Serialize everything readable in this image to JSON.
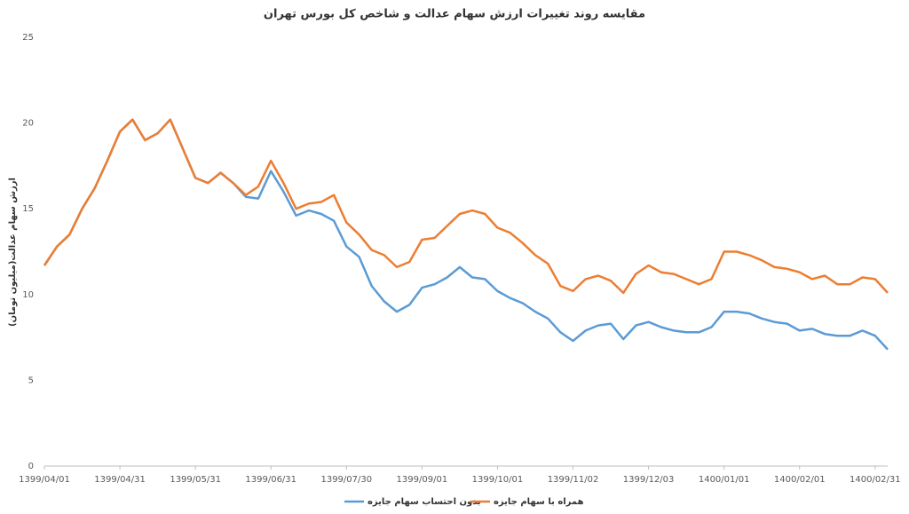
{
  "chart_data": {
    "type": "line",
    "title": "مقایسه روند تغییرات ارزش سهام عدالت و شاخص کل بورس تهران",
    "y_label": "ارزش سهام عدالت(میلیون تومان)",
    "categories": [
      "1399/04/01",
      null,
      null,
      null,
      null,
      null,
      "1399/04/31",
      null,
      null,
      null,
      null,
      null,
      "1399/05/31",
      null,
      null,
      null,
      null,
      null,
      "1399/06/31",
      null,
      null,
      null,
      null,
      null,
      "1399/07/30",
      null,
      null,
      null,
      null,
      null,
      "1399/09/01",
      null,
      null,
      null,
      null,
      null,
      "1399/10/01",
      null,
      null,
      null,
      null,
      null,
      "1399/11/02",
      null,
      null,
      null,
      null,
      null,
      "1399/12/03",
      null,
      null,
      null,
      null,
      null,
      "1400/01/01",
      null,
      null,
      null,
      null,
      null,
      "1400/02/01",
      null,
      null,
      null,
      null,
      null,
      "1400/02/31",
      null
    ],
    "series": [
      {
        "name": "بدون احتساب سهام جایزه",
        "color": "#5b9bd5",
        "values": [
          11.7,
          12.8,
          13.5,
          15.0,
          16.2,
          17.8,
          19.5,
          20.2,
          19.0,
          19.4,
          20.2,
          18.5,
          16.8,
          16.5,
          17.1,
          16.5,
          15.7,
          15.6,
          17.2,
          16.0,
          14.6,
          14.9,
          14.7,
          14.3,
          12.8,
          12.2,
          10.5,
          9.6,
          9.0,
          9.4,
          10.4,
          10.6,
          11.0,
          11.6,
          11.0,
          10.9,
          10.2,
          9.8,
          9.5,
          9.0,
          8.6,
          7.8,
          7.3,
          7.9,
          8.2,
          8.3,
          7.4,
          8.2,
          8.4,
          8.1,
          7.9,
          7.8,
          7.8,
          8.1,
          9.0,
          9.0,
          8.9,
          8.6,
          8.4,
          8.3,
          7.9,
          8.0,
          7.7,
          7.6,
          7.6,
          7.9,
          7.6,
          6.8
        ]
      },
      {
        "name": "همراه با سهام جایزه",
        "color": "#ed7d31",
        "values": [
          11.7,
          12.8,
          13.5,
          15.0,
          16.2,
          17.8,
          19.5,
          20.2,
          19.0,
          19.4,
          20.2,
          18.5,
          16.8,
          16.5,
          17.1,
          16.5,
          15.8,
          16.3,
          17.8,
          16.5,
          15.0,
          15.3,
          15.4,
          15.8,
          14.2,
          13.5,
          12.6,
          12.3,
          11.6,
          11.9,
          13.2,
          13.3,
          14.0,
          14.7,
          14.9,
          14.7,
          13.9,
          13.6,
          13.0,
          12.3,
          11.8,
          10.5,
          10.2,
          10.9,
          11.1,
          10.8,
          10.1,
          11.2,
          11.7,
          11.3,
          11.2,
          10.9,
          10.6,
          10.9,
          12.5,
          12.5,
          12.3,
          12.0,
          11.6,
          11.5,
          11.3,
          10.9,
          11.1,
          10.6,
          10.6,
          11.0,
          10.9,
          10.1
        ]
      }
    ],
    "ylim": [
      0,
      25
    ],
    "yticks": [
      0,
      5,
      10,
      15,
      20,
      25
    ],
    "grid": false
  }
}
